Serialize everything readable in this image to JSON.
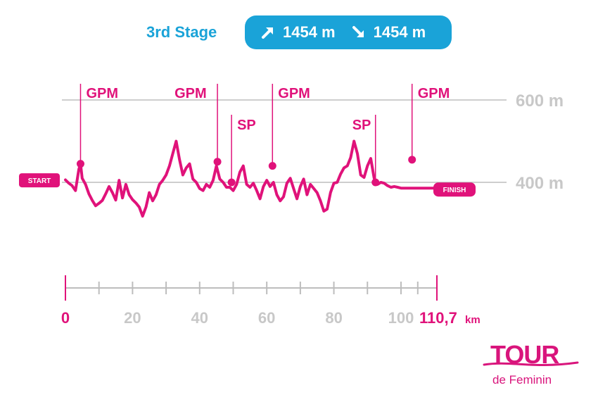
{
  "header": {
    "stage_title": "3rd Stage",
    "ascent_label": "1454 m",
    "descent_label": "1454 m",
    "ascent_icon": "arrow-up-right-icon",
    "descent_icon": "arrow-down-right-icon"
  },
  "colors": {
    "profile": "#e0127a",
    "accent_blue": "#1aa3d8",
    "grid": "#bdbdbd",
    "tick_text": "#c8c8c8"
  },
  "logo": {
    "main": "TOUR",
    "sub": "de Feminin"
  },
  "chart_data": {
    "type": "line",
    "title": "",
    "xlabel": "",
    "ylabel": "",
    "x_unit": "km",
    "total_distance_label": "110,7",
    "xlim": [
      0,
      110.7
    ],
    "x_ticks": [
      0,
      20,
      40,
      60,
      80,
      100
    ],
    "x_minor_ticks": [
      10,
      30,
      50,
      70,
      90,
      105
    ],
    "y_ticks": [
      {
        "value": 600,
        "label": "600 m"
      },
      {
        "value": 400,
        "label": "400 m"
      }
    ],
    "start_label": "START",
    "finish_label": "FINISH",
    "profile": {
      "x": [
        0,
        1,
        2,
        3,
        4,
        4.5,
        5,
        6,
        7,
        8,
        9,
        10,
        11,
        12,
        13,
        14,
        15,
        16,
        17,
        18,
        19,
        20,
        21,
        22,
        23,
        24,
        25,
        26,
        27,
        28,
        29,
        30,
        31,
        32,
        33,
        34,
        35,
        36,
        37,
        38,
        39,
        40,
        41,
        42,
        43,
        44,
        45,
        46,
        47,
        48,
        49,
        50,
        51,
        52,
        53,
        54,
        55,
        56,
        57,
        58,
        59,
        60,
        61,
        62,
        63,
        64,
        65,
        66,
        67,
        68,
        69,
        70,
        71,
        72,
        73,
        74,
        75,
        76,
        77,
        78,
        79,
        80,
        81,
        82,
        83,
        84,
        85,
        86,
        87,
        88,
        89,
        90,
        91,
        92,
        93,
        94,
        95,
        96,
        97,
        98,
        99,
        100,
        101,
        102,
        103,
        104,
        105,
        106,
        107,
        108,
        109,
        110.7
      ],
      "y": [
        406,
        398,
        392,
        380,
        432,
        445,
        410,
        395,
        372,
        356,
        343,
        349,
        356,
        372,
        390,
        375,
        357,
        405,
        362,
        395,
        370,
        358,
        350,
        340,
        318,
        340,
        375,
        355,
        370,
        395,
        405,
        418,
        440,
        470,
        500,
        455,
        418,
        435,
        445,
        408,
        400,
        385,
        380,
        395,
        388,
        405,
        440,
        408,
        400,
        388,
        388,
        380,
        395,
        425,
        440,
        395,
        388,
        398,
        380,
        360,
        390,
        405,
        390,
        400,
        370,
        355,
        365,
        398,
        410,
        385,
        360,
        390,
        408,
        370,
        395,
        385,
        375,
        355,
        330,
        335,
        375,
        398,
        400,
        420,
        435,
        440,
        460,
        500,
        470,
        418,
        412,
        440,
        458,
        410,
        395,
        400,
        398,
        392,
        388,
        390,
        388,
        386,
        386,
        386,
        386,
        386,
        386,
        386,
        386,
        386,
        386,
        386
      ],
      "approx_start_elevation": 405
    },
    "markers": [
      {
        "label": "GPM",
        "km": 4.5,
        "elevation": 445
      },
      {
        "label": "GPM",
        "km": 45.3,
        "elevation": 450
      },
      {
        "label": "SP",
        "km": 49.5,
        "elevation": 400
      },
      {
        "label": "GPM",
        "km": 61.7,
        "elevation": 440
      },
      {
        "label": "SP",
        "km": 92.4,
        "elevation": 400
      },
      {
        "label": "GPM",
        "km": 103.3,
        "elevation": 455
      }
    ]
  }
}
